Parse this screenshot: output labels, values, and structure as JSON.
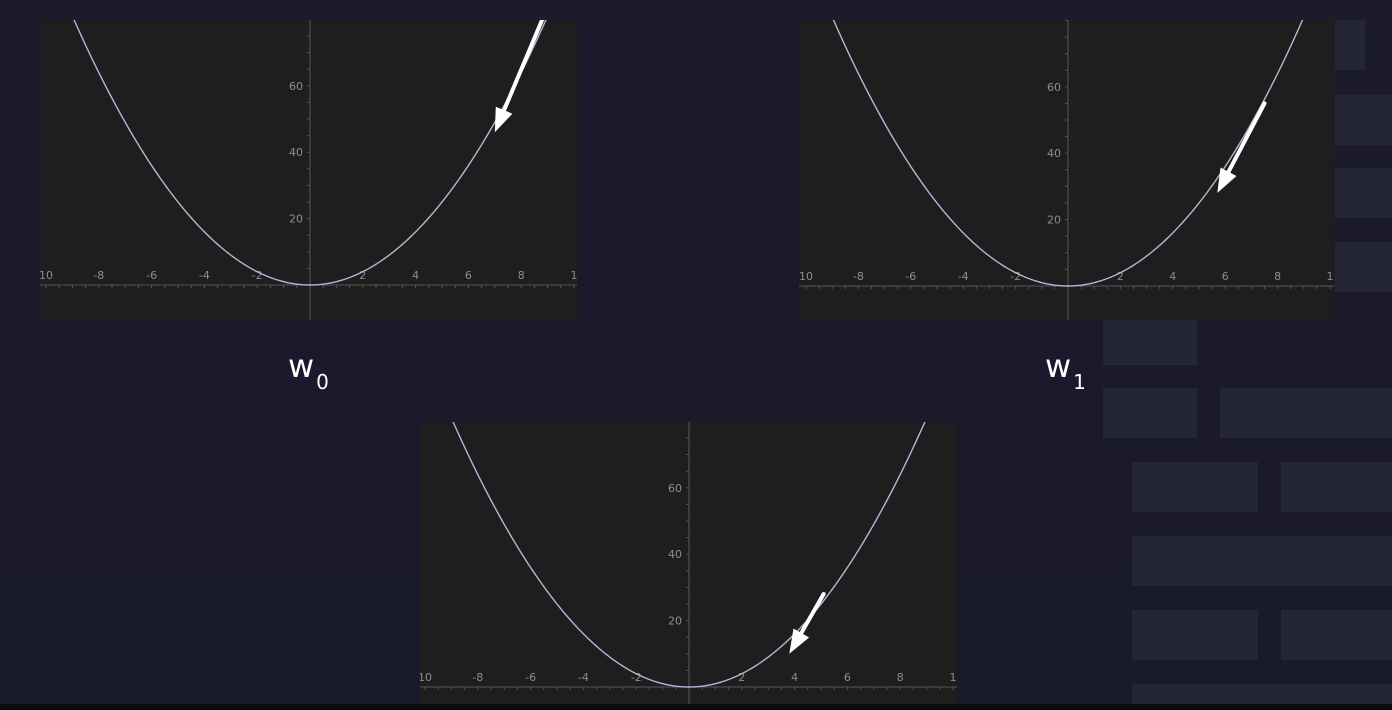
{
  "labels": {
    "w0": {
      "base": "w",
      "sub": "0"
    },
    "w1": {
      "base": "w",
      "sub": "1"
    }
  },
  "colors": {
    "curve": "#b8b6d8",
    "arrow": "#ffffff",
    "axis": "#555555",
    "tick_text": "#8e8e8e"
  },
  "chart_data": [
    {
      "type": "line",
      "function": "y = x^2",
      "x": [
        -10,
        -8,
        -6,
        -4,
        -2,
        0,
        2,
        4,
        6,
        8,
        10
      ],
      "y": [
        100,
        64,
        36,
        16,
        4,
        0,
        4,
        16,
        36,
        64,
        100
      ],
      "xlim": [
        -10,
        10
      ],
      "ylim": [
        -10,
        80
      ],
      "xticks": [
        "10",
        "-8",
        "-6",
        "-4",
        "-2",
        "2",
        "4",
        "6",
        "8",
        "1"
      ],
      "yticks": [
        "60",
        "40",
        "20"
      ],
      "arrow": {
        "from": [
          8.8,
          80
        ],
        "to": [
          7.0,
          46
        ]
      }
    },
    {
      "type": "line",
      "function": "y = x^2",
      "x": [
        -10,
        -8,
        -6,
        -4,
        -2,
        0,
        2,
        4,
        6,
        8,
        10
      ],
      "y": [
        100,
        64,
        36,
        16,
        4,
        0,
        4,
        16,
        36,
        64,
        100
      ],
      "xlim": [
        -10,
        10
      ],
      "ylim": [
        -10,
        80
      ],
      "xticks": [
        "10",
        "-8",
        "-6",
        "-4",
        "-2",
        "2",
        "4",
        "6",
        "8",
        "1"
      ],
      "yticks": [
        "60",
        "40",
        "20"
      ],
      "arrow": {
        "from": [
          7.5,
          55
        ],
        "to": [
          5.7,
          28
        ]
      }
    },
    {
      "type": "line",
      "function": "y = x^2",
      "x": [
        -10,
        -8,
        -6,
        -4,
        -2,
        0,
        2,
        4,
        6,
        8,
        10
      ],
      "y": [
        100,
        64,
        36,
        16,
        4,
        0,
        4,
        16,
        36,
        64,
        100
      ],
      "xlim": [
        -10,
        10
      ],
      "ylim": [
        -10,
        80
      ],
      "xticks": [
        "10",
        "-8",
        "-6",
        "-4",
        "-2",
        "2",
        "4",
        "6",
        "8",
        "1"
      ],
      "yticks": [
        "60",
        "40",
        "20"
      ],
      "arrow": {
        "from": [
          5.1,
          28
        ],
        "to": [
          3.8,
          10
        ]
      }
    }
  ]
}
